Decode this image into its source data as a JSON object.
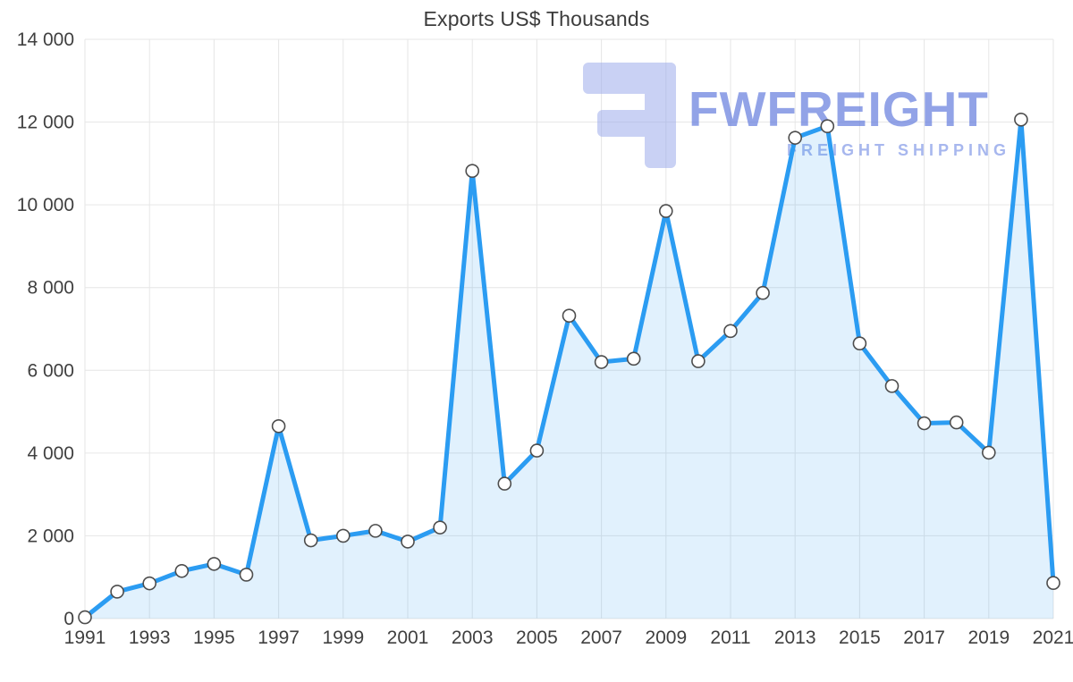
{
  "title": "Exports US$ Thousands",
  "watermark": {
    "brand": "FWFREIGHT",
    "subtitle": "FREIGHT SHIPPING",
    "logo_icon": "mirrored-f-logo-icon",
    "brand_color": "#5f79dd",
    "subtitle_color": "#7f96e6",
    "logo_color": "#94a5ea"
  },
  "chart_data": {
    "type": "area",
    "title": "Exports US$ Thousands",
    "xlabel": "",
    "ylabel": "",
    "x": [
      1991,
      1992,
      1993,
      1994,
      1995,
      1996,
      1997,
      1998,
      1999,
      2000,
      2001,
      2002,
      2003,
      2004,
      2005,
      2006,
      2007,
      2008,
      2009,
      2010,
      2011,
      2012,
      2013,
      2014,
      2015,
      2016,
      2017,
      2018,
      2019,
      2020,
      2021
    ],
    "values": [
      30,
      650,
      850,
      1150,
      1320,
      1060,
      4650,
      1890,
      2000,
      2120,
      1860,
      2200,
      10820,
      3260,
      4060,
      7320,
      6200,
      6280,
      9850,
      6220,
      6950,
      7870,
      11620,
      11900,
      6650,
      5620,
      4720,
      4740,
      4010,
      12060,
      860
    ],
    "ylim": [
      0,
      14000
    ],
    "ytick_step": 2000,
    "ytick_labels": [
      "0",
      "2 000",
      "4 000",
      "6 000",
      "8 000",
      "10 000",
      "12 000",
      "14 000"
    ],
    "xtick_years": [
      1991,
      1993,
      1995,
      1997,
      1999,
      2001,
      2003,
      2005,
      2007,
      2009,
      2011,
      2013,
      2015,
      2017,
      2019,
      2021
    ],
    "grid": true,
    "legend": "none",
    "colors": {
      "line": "#2b9cf2",
      "fill": "rgba(43,156,242,0.14)",
      "marker_fill": "#ffffff",
      "marker_stroke": "#4d4d4d",
      "grid": "#e6e6e6",
      "axis_text": "#404040"
    }
  }
}
